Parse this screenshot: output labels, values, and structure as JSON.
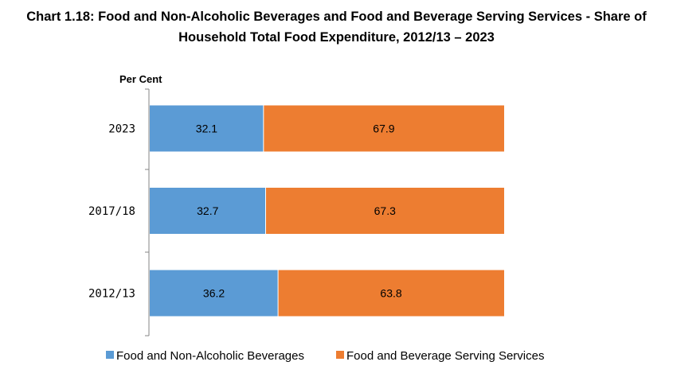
{
  "chart_data": {
    "type": "bar",
    "orientation": "horizontal",
    "stacked": true,
    "title_line1": "Chart 1.18: Food and Non-Alcoholic Beverages and Food and Beverage Serving Services - Share of",
    "title_line2": "Household Total Food Expenditure, 2012/13 – 2023",
    "ylabel": "Per Cent",
    "categories": [
      "2023",
      "2017/18",
      "2012/13"
    ],
    "series": [
      {
        "name": "Food and Non-Alcoholic Beverages",
        "values": [
          32.1,
          32.7,
          36.2
        ],
        "labels": [
          "32.1",
          "32.7",
          "36.2"
        ],
        "color": "#5B9BD5"
      },
      {
        "name": "Food and Beverage Serving Services",
        "values": [
          67.9,
          67.3,
          63.8
        ],
        "labels": [
          "67.9",
          "67.3",
          "63.8"
        ],
        "color": "#ED7D31"
      }
    ],
    "xlim": [
      0,
      100
    ],
    "grid": false,
    "legend_position": "bottom"
  }
}
